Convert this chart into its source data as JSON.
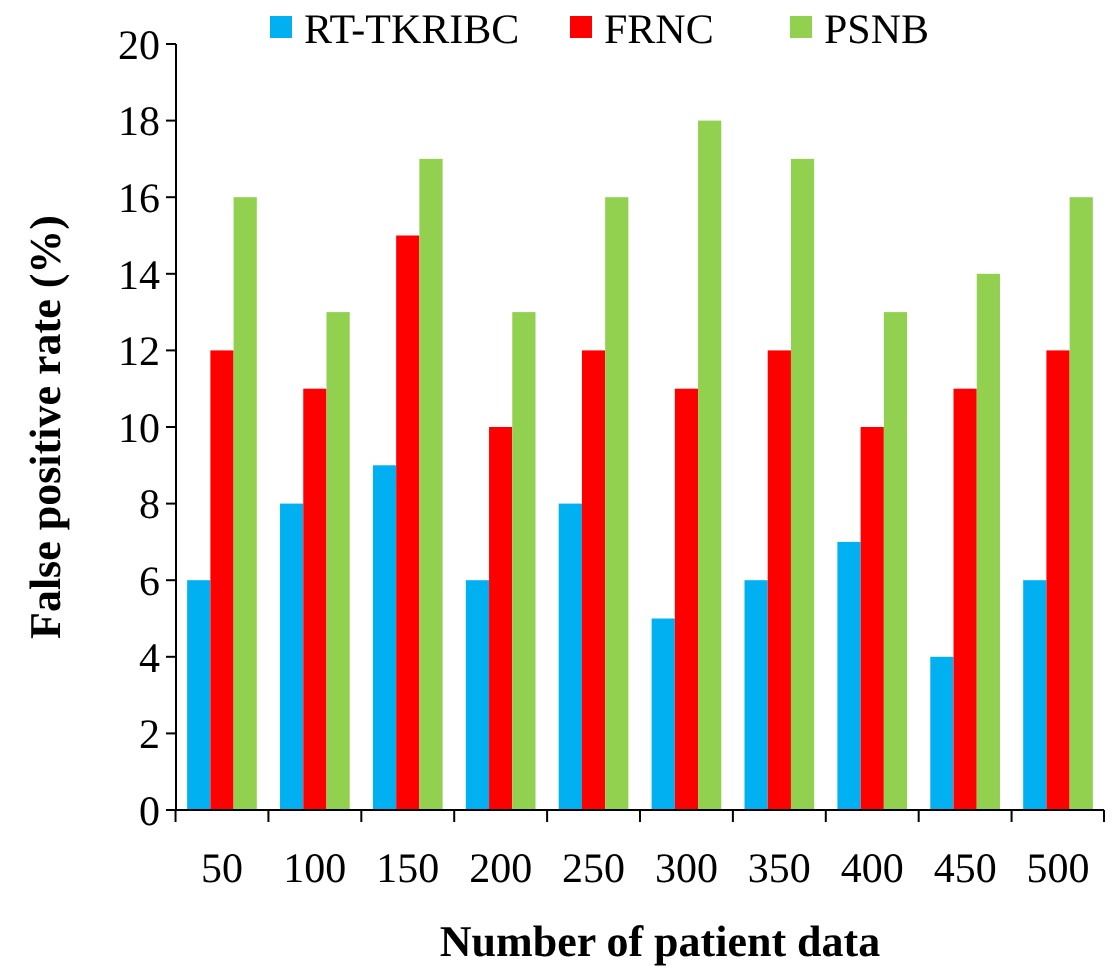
{
  "chart_data": {
    "type": "bar",
    "xlabel": "Number of patient data",
    "ylabel": "False positive rate (%)",
    "categories": [
      "50",
      "100",
      "150",
      "200",
      "250",
      "300",
      "350",
      "400",
      "450",
      "500"
    ],
    "series": [
      {
        "name": "RT-TKRIBC",
        "color": "#00b0f0",
        "values": [
          6,
          8,
          9,
          6,
          8,
          5,
          6,
          7,
          4,
          6
        ]
      },
      {
        "name": "FRNC",
        "color": "#ff0000",
        "values": [
          12,
          11,
          15,
          10,
          12,
          11,
          12,
          10,
          11,
          12
        ]
      },
      {
        "name": "PSNB",
        "color": "#92d050",
        "values": [
          16,
          13,
          17,
          13,
          16,
          18,
          17,
          13,
          14,
          16
        ]
      }
    ],
    "ylim": [
      0,
      20
    ],
    "yticks": [
      0,
      2,
      4,
      6,
      8,
      10,
      12,
      14,
      16,
      18,
      20
    ],
    "grid": false,
    "legend": "top"
  }
}
